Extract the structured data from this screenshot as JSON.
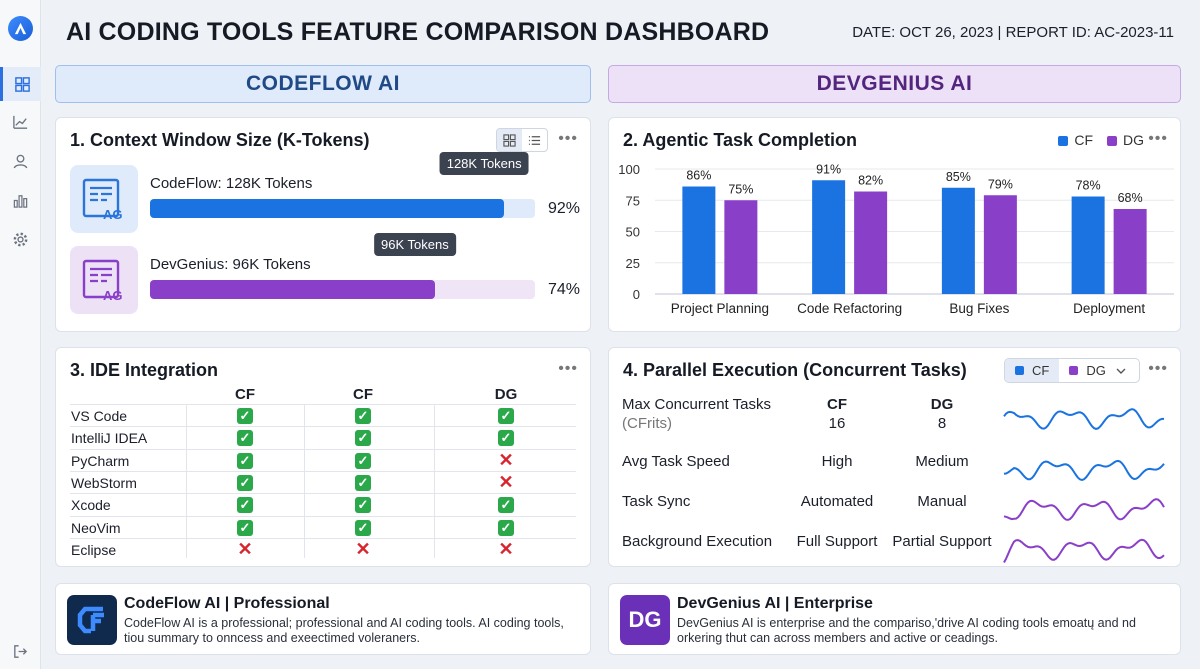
{
  "header": {
    "title": "AI CODING TOOLS FEATURE COMPARISON DASHBOARD",
    "meta": "DATE: OCT 26, 2023  | REPORT ID: AC-2023-11"
  },
  "sidebar": {
    "items": [
      {
        "icon": "dashboard-icon",
        "active": true
      },
      {
        "icon": "trend-chart-icon",
        "active": false
      },
      {
        "icon": "user-icon",
        "active": false
      },
      {
        "icon": "bar-chart-icon",
        "active": false
      },
      {
        "icon": "gear-icon",
        "active": false
      }
    ],
    "bottom_icon": "logout-icon"
  },
  "products": {
    "cf": {
      "name": "CODEFLOW AI",
      "color": "#1a73e0"
    },
    "dg": {
      "name": "DEVGENIUS AI",
      "color": "#8a3fc8"
    }
  },
  "context_window": {
    "title": "1. Context Window Size (K-Tokens)",
    "icon_text": "AG",
    "rows": [
      {
        "key": "cf",
        "label": "CodeFlow: 128K Tokens",
        "tooltip": "128K Tokens",
        "fill": 0.92,
        "pct": "92%"
      },
      {
        "key": "dg",
        "label": "DevGenius: 96K Tokens",
        "tooltip": "96K Tokens",
        "fill": 0.74,
        "pct": "74%"
      }
    ]
  },
  "chart_data": {
    "type": "bar",
    "title": "2. Agentic Task Completion",
    "categories": [
      "Project Planning",
      "Code Refactoring",
      "Bug Fixes",
      "Deployment"
    ],
    "series": [
      {
        "name": "CF",
        "color": "#1a73e0",
        "values": [
          86,
          91,
          85,
          78
        ],
        "labels": [
          "86%",
          "91%",
          "85%",
          "78%"
        ]
      },
      {
        "name": "DG",
        "color": "#8a3fc8",
        "values": [
          75,
          82,
          79,
          68
        ],
        "labels": [
          "75%",
          "82%",
          "79%",
          "68%"
        ]
      }
    ],
    "ylim": [
      0,
      100
    ],
    "yticks": [
      "0",
      "25",
      "50",
      "75",
      "100"
    ],
    "legend": "top-right",
    "grid": true
  },
  "ide": {
    "title": "3. IDE Integration",
    "columns": [
      "CF",
      "CF",
      "DG"
    ],
    "rows": [
      {
        "name": "VS Code",
        "vals": [
          true,
          true,
          true
        ]
      },
      {
        "name": "IntelliJ IDEA",
        "vals": [
          true,
          true,
          true
        ]
      },
      {
        "name": "PyCharm",
        "vals": [
          true,
          true,
          false
        ]
      },
      {
        "name": "WebStorm",
        "vals": [
          true,
          true,
          false
        ]
      },
      {
        "name": "Xcode",
        "vals": [
          true,
          true,
          true
        ]
      },
      {
        "name": "NeoVim",
        "vals": [
          true,
          true,
          true
        ]
      },
      {
        "name": "Eclipse",
        "vals": [
          false,
          false,
          false
        ]
      }
    ],
    "check_glyph": "✓",
    "cross_glyph": "✕"
  },
  "parallel": {
    "title": "4. Parallel Execution (Concurrent Tasks)",
    "filter": {
      "cf": "CF",
      "dg": "DG"
    },
    "head_cf": "CF",
    "head_dg": "DG",
    "rows": [
      {
        "label": "Max Concurrent Tasks",
        "sub": "(CFrits)",
        "cf": "16",
        "dg": "8",
        "spark": "cf"
      },
      {
        "label": "Avg Task Speed",
        "cf": "High",
        "dg": "Medium",
        "spark": "cf"
      },
      {
        "label": "Task Sync",
        "cf": "Automated",
        "dg": "Manual",
        "spark": "dg"
      },
      {
        "label": "Background Execution",
        "cf": "Full Support",
        "dg": "Partial Support",
        "spark": "dg"
      }
    ]
  },
  "bottom": {
    "cf": {
      "logo": "CF",
      "title": "CodeFlow AI | Professional",
      "text": "CodeFlow AI is a professional; professional and AI coding tools. AI coding tools, tiou summary to onncess and exeectimed voleraners."
    },
    "dg": {
      "logo": "DG",
      "title": "DevGenius AI | Enterprise",
      "text": "DevGenius AI is enterprise and the compariso,'drive AI coding tools emoatų and nd orkering thut can across members and active or ceadings."
    }
  }
}
